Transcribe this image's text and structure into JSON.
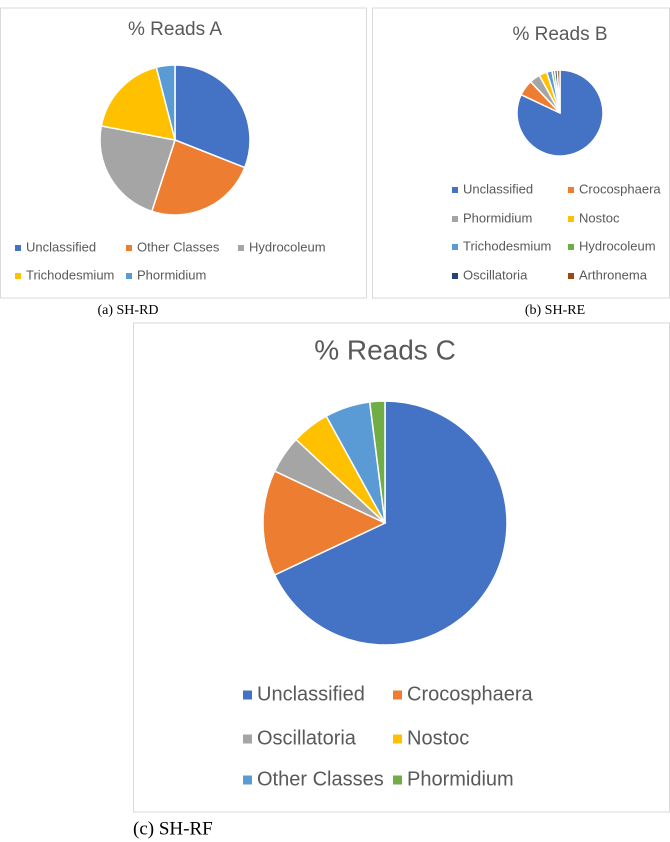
{
  "chart_data": [
    {
      "type": "pie",
      "title": "% Reads A",
      "caption": "(a) SH-RD",
      "categories": [
        "Unclassified",
        "Other Classes",
        "Hydrocoleum",
        "Trichodesmium",
        "Phormidium"
      ],
      "values": [
        31,
        24,
        23,
        18,
        4
      ],
      "colors": [
        "#4472c4",
        "#ed7d31",
        "#a5a5a5",
        "#ffc000",
        "#5b9bd5"
      ]
    },
    {
      "type": "pie",
      "title": "% Reads B",
      "caption": "(b) SH-RE",
      "categories": [
        "Unclassified",
        "Crocosphaera",
        "Phormidium",
        "Nostoc",
        "Trichodesmium",
        "Hydrocoleum",
        "Oscillatoria",
        "Arthronema"
      ],
      "values": [
        82,
        6,
        4,
        3,
        2,
        1,
        1,
        1
      ],
      "colors": [
        "#4472c4",
        "#ed7d31",
        "#a5a5a5",
        "#ffc000",
        "#5b9bd5",
        "#70ad47",
        "#264478",
        "#9e480e"
      ]
    },
    {
      "type": "pie",
      "title": "% Reads C",
      "caption": "(c) SH-RF",
      "categories": [
        "Unclassified",
        "Crocosphaera",
        "Oscillatoria",
        "Nostoc",
        "Other Classes",
        "Phormidium"
      ],
      "values": [
        68,
        14,
        5,
        5,
        6,
        2
      ],
      "colors": [
        "#4472c4",
        "#ed7d31",
        "#a5a5a5",
        "#ffc000",
        "#5b9bd5",
        "#70ad47"
      ]
    }
  ]
}
